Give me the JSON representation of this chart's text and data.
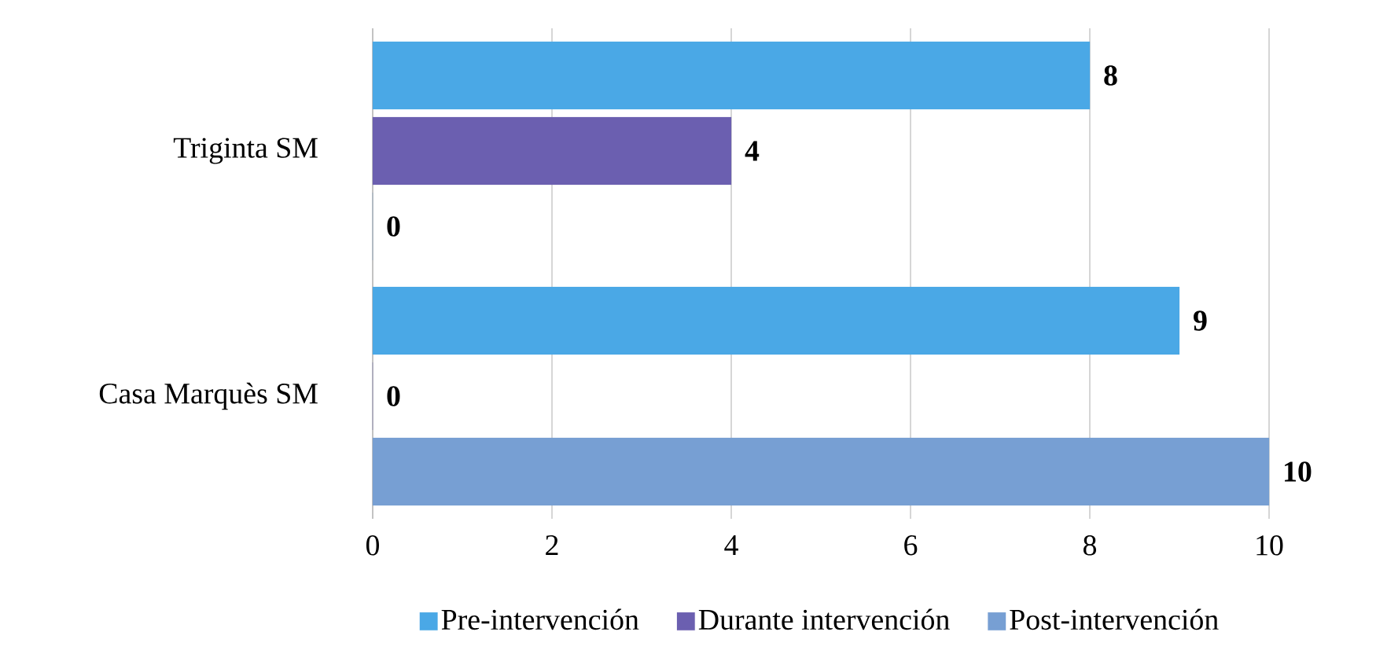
{
  "chart_data": {
    "type": "bar",
    "orientation": "horizontal",
    "categories": [
      "Triginta SM",
      "Casa Marquès SM"
    ],
    "series": [
      {
        "name": "Pre-intervención",
        "color": "#4aa8e6",
        "values": [
          8,
          9
        ]
      },
      {
        "name": "Durante intervención",
        "color": "#6b5fb0",
        "values": [
          4,
          0
        ]
      },
      {
        "name": "Post-intervención",
        "color": "#779fd3",
        "values": [
          0,
          10
        ]
      }
    ],
    "xlim": [
      0,
      10
    ],
    "xticks": [
      0,
      2,
      4,
      6,
      8,
      10
    ],
    "grid": "x",
    "legend": "bottom",
    "data_labels": true
  }
}
